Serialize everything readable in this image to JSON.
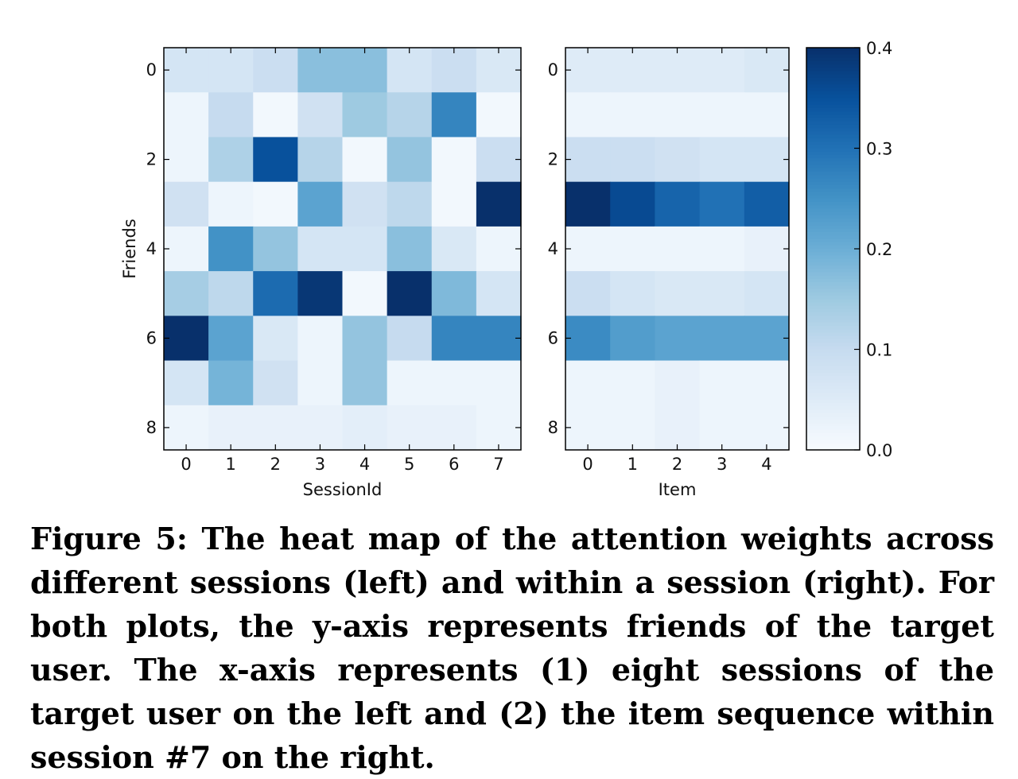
{
  "chart_data": [
    {
      "type": "heatmap",
      "xlabel": "SessionId",
      "ylabel": "Friends",
      "x_categories": [
        "0",
        "1",
        "2",
        "3",
        "4",
        "5",
        "6",
        "7"
      ],
      "y_categories": [
        "0",
        "1",
        "2",
        "3",
        "4",
        "5",
        "6",
        "7",
        "8"
      ],
      "x_tick_labels": [
        "0",
        "1",
        "2",
        "3",
        "4",
        "5",
        "6",
        "7"
      ],
      "y_tick_labels": [
        "0",
        "2",
        "4",
        "6",
        "8"
      ],
      "values": [
        [
          0.07,
          0.07,
          0.09,
          0.17,
          0.17,
          0.07,
          0.09,
          0.06
        ],
        [
          0.02,
          0.1,
          0.01,
          0.08,
          0.15,
          0.12,
          0.27,
          0.01
        ],
        [
          0.02,
          0.13,
          0.35,
          0.12,
          0.01,
          0.16,
          0.01,
          0.09
        ],
        [
          0.08,
          0.02,
          0.01,
          0.22,
          0.08,
          0.11,
          0.01,
          0.4
        ],
        [
          0.02,
          0.25,
          0.16,
          0.07,
          0.07,
          0.17,
          0.06,
          0.02
        ],
        [
          0.14,
          0.11,
          0.31,
          0.39,
          0.01,
          0.41,
          0.18,
          0.07
        ],
        [
          0.41,
          0.22,
          0.06,
          0.02,
          0.16,
          0.1,
          0.27,
          0.27
        ],
        [
          0.07,
          0.19,
          0.08,
          0.02,
          0.16,
          0.02,
          0.02,
          0.02
        ],
        [
          0.02,
          0.03,
          0.03,
          0.03,
          0.04,
          0.03,
          0.03,
          0.02
        ]
      ],
      "colormap": "Blues",
      "vmin": 0,
      "vmax": 0.4
    },
    {
      "type": "heatmap",
      "xlabel": "Item",
      "ylabel": "",
      "x_categories": [
        "0",
        "1",
        "2",
        "3",
        "4"
      ],
      "y_categories": [
        "0",
        "1",
        "2",
        "3",
        "4",
        "5",
        "6",
        "7",
        "8"
      ],
      "x_tick_labels": [
        "0",
        "1",
        "2",
        "3",
        "4"
      ],
      "y_tick_labels": [
        "0",
        "2",
        "4",
        "6",
        "8"
      ],
      "values": [
        [
          0.05,
          0.05,
          0.05,
          0.05,
          0.06
        ],
        [
          0.02,
          0.02,
          0.02,
          0.02,
          0.02
        ],
        [
          0.09,
          0.09,
          0.08,
          0.07,
          0.07
        ],
        [
          0.4,
          0.36,
          0.32,
          0.3,
          0.33
        ],
        [
          0.02,
          0.02,
          0.02,
          0.02,
          0.03
        ],
        [
          0.09,
          0.07,
          0.06,
          0.06,
          0.07
        ],
        [
          0.26,
          0.23,
          0.22,
          0.22,
          0.22
        ],
        [
          0.02,
          0.02,
          0.03,
          0.02,
          0.02
        ],
        [
          0.02,
          0.02,
          0.03,
          0.02,
          0.02
        ]
      ],
      "colormap": "Blues",
      "vmin": 0,
      "vmax": 0.4
    }
  ],
  "colorbar": {
    "tick_labels": [
      "0.4",
      "0.3",
      "0.2",
      "0.1",
      "0.0"
    ],
    "tick_values": [
      0.4,
      0.3,
      0.2,
      0.1,
      0.0
    ],
    "vmin": 0,
    "vmax": 0.4
  },
  "caption": "Figure 5: The heat map of the attention weights across different sessions (left) and within a session (right). For both plots, the y-axis represents friends of the target user. The x-axis represents (1) eight sessions of the target user on the left and (2) the item sequence within session #7 on the right."
}
